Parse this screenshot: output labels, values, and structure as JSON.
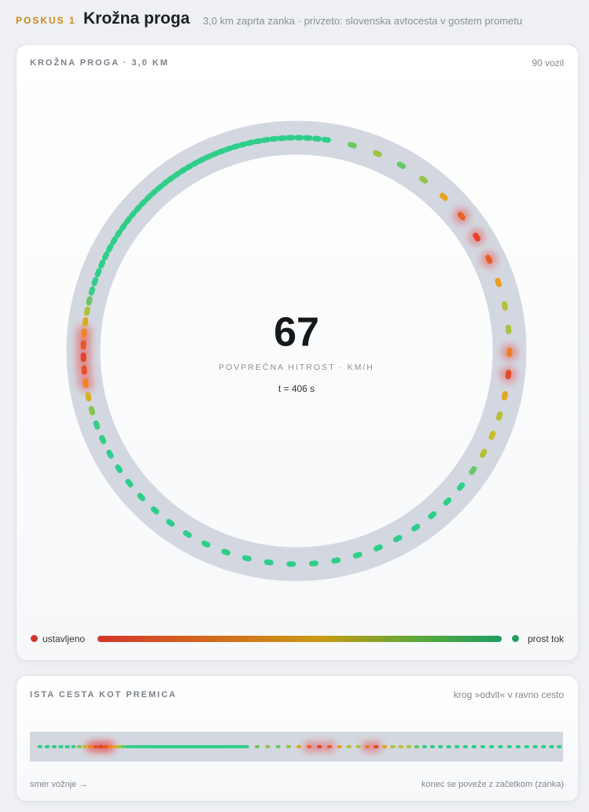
{
  "header": {
    "tag": "POSKUS 1",
    "title": "Krožna proga",
    "subtitle": "3,0 km zaprta zanka · privzeto: slovenska avtocesta v gostem prometu"
  },
  "ring_panel": {
    "title": "KROŽNA PROGA · 3,0 KM",
    "count": "90 vozil",
    "speed": "67",
    "speed_label": "POVPREČNA HITROST · KM/H",
    "time": "t = 406 s",
    "legend_low": "ustavljeno",
    "legend_high": "prost tok"
  },
  "strip_panel": {
    "title": "ISTA CESTA KOT PREMICA",
    "note": "krog »odvit« v ravno cesto",
    "footer_left": "smer vožnje →",
    "footer_right": "konec se poveže z začetkom (zanka)"
  }
}
